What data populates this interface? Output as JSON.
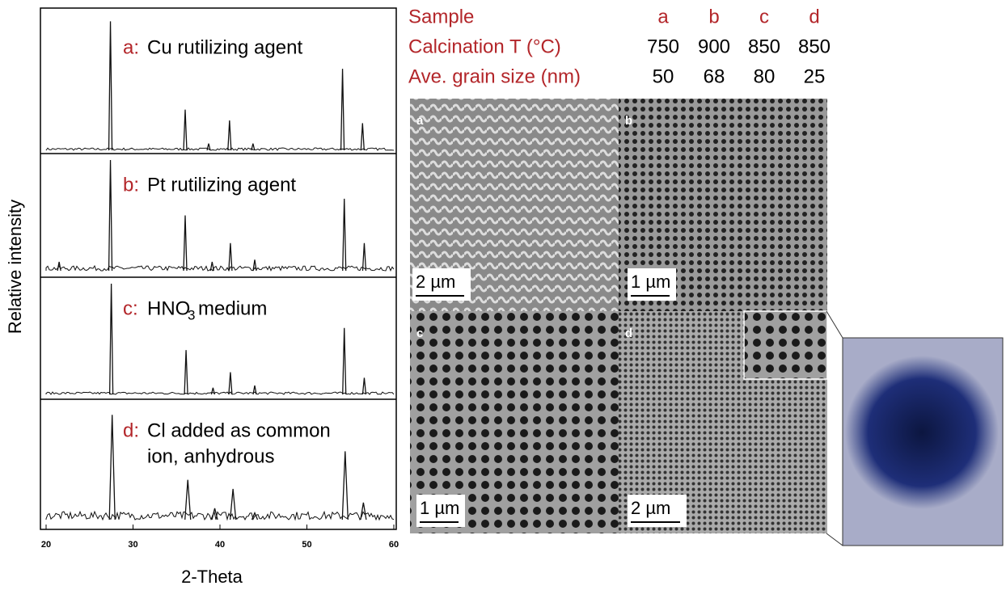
{
  "chart_data": {
    "type": "xrd",
    "xlabel": "2-Theta",
    "ylabel": "Relative intensity",
    "xlim": [
      20,
      60
    ],
    "xticks": [
      20,
      30,
      40,
      50,
      60
    ],
    "panels": [
      {
        "letter": "a:",
        "label": [
          "Cu rutilizing agent"
        ],
        "peaks_x": [
          27.4,
          36.0,
          38.7,
          41.1,
          43.8,
          54.1,
          56.4
        ],
        "peaks_y": [
          0.95,
          0.3,
          0.05,
          0.22,
          0.05,
          0.6,
          0.2
        ]
      },
      {
        "letter": "b:",
        "label": [
          "Pt rutilizing agent"
        ],
        "peaks_x": [
          21.5,
          27.4,
          36.0,
          39.1,
          41.2,
          44.0,
          54.3,
          56.6
        ],
        "peaks_y": [
          0.08,
          1.0,
          0.5,
          0.08,
          0.25,
          0.1,
          0.65,
          0.25
        ]
      },
      {
        "letter": "c:",
        "label": [
          "HNO",
          "3",
          " medium"
        ],
        "peaks_x": [
          27.5,
          36.1,
          39.2,
          41.2,
          44.0,
          54.3,
          56.6
        ],
        "peaks_y": [
          1.0,
          0.4,
          0.06,
          0.2,
          0.08,
          0.6,
          0.15
        ]
      },
      {
        "letter": "d:",
        "label": [
          "Cl added as common",
          "ion, anhydrous"
        ],
        "peaks_x": [
          27.6,
          36.3,
          39.4,
          41.5,
          44.0,
          54.4,
          56.5
        ],
        "peaks_y": [
          0.92,
          0.35,
          0.1,
          0.27,
          0.06,
          0.6,
          0.15
        ]
      }
    ]
  },
  "table": {
    "row_headers": [
      "Sample",
      "Calcination T (°C)",
      "Ave. grain size (nm)"
    ],
    "rows": [
      [
        "a",
        "b",
        "c",
        "d"
      ],
      [
        "750",
        "900",
        "850",
        "850"
      ],
      [
        "50",
        "68",
        "80",
        "25"
      ]
    ]
  },
  "images": [
    {
      "letter": "a",
      "scale": "2 µm"
    },
    {
      "letter": "b",
      "scale": "1 µm"
    },
    {
      "letter": "c",
      "scale": "1 µm"
    },
    {
      "letter": "d",
      "scale": "2 µm"
    }
  ]
}
